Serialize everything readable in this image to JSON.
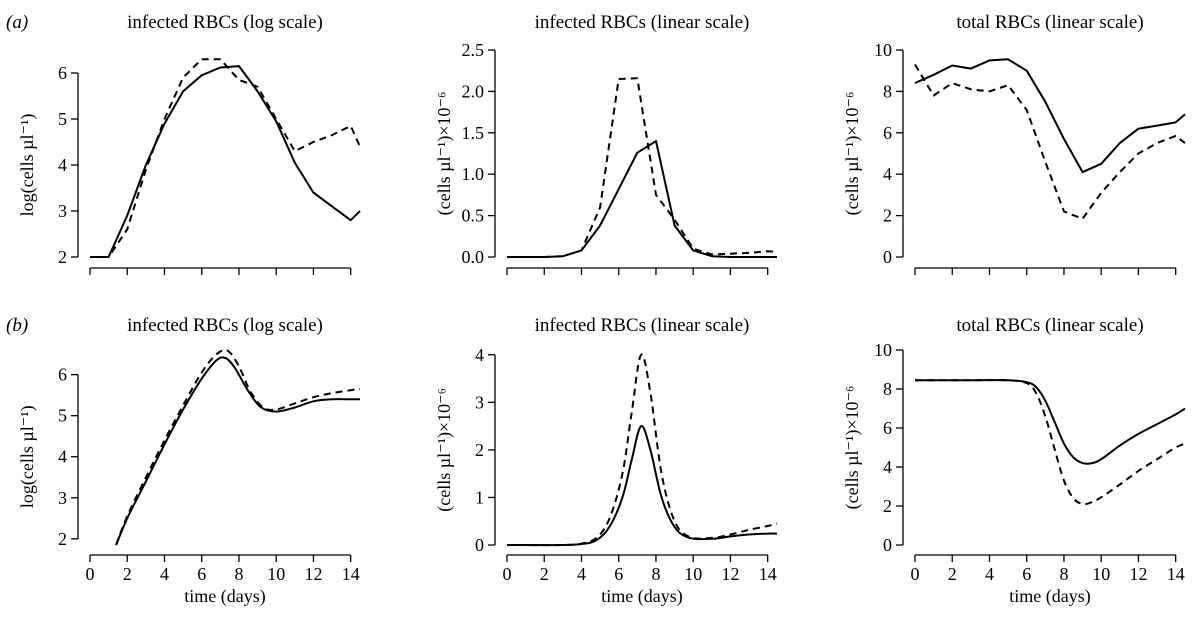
{
  "panel_labels": [
    "(a)",
    "(b)"
  ],
  "chart_data": [
    {
      "type": "line",
      "row": 0,
      "col": 0,
      "title": "infected RBCs (log scale)",
      "xlabel": "",
      "ylabel": "log(cells µl⁻¹)",
      "xlim": [
        0,
        14.5
      ],
      "ylim": [
        2,
        6.5
      ],
      "xticks": [
        0,
        2,
        4,
        6,
        8,
        10,
        12,
        14
      ],
      "show_xtick_labels": false,
      "yticks": [
        2,
        3,
        4,
        5,
        6
      ],
      "series": [
        {
          "style": "solid",
          "x": [
            0,
            1,
            2,
            3,
            4,
            5,
            6,
            7,
            8,
            9,
            10,
            11,
            12,
            13,
            14,
            14.5
          ],
          "y": [
            2.0,
            2.0,
            2.9,
            4.0,
            4.9,
            5.6,
            5.95,
            6.12,
            6.15,
            5.6,
            4.95,
            4.05,
            3.4,
            3.1,
            2.8,
            3.0
          ]
        },
        {
          "style": "dashed",
          "x": [
            0,
            1,
            2,
            3,
            4,
            5,
            6,
            7,
            8,
            9,
            10,
            11,
            12,
            13,
            14,
            14.5
          ],
          "y": [
            2.0,
            2.0,
            2.6,
            3.9,
            5.0,
            5.9,
            6.3,
            6.3,
            5.85,
            5.7,
            5.0,
            4.3,
            4.5,
            4.65,
            4.85,
            4.4
          ]
        }
      ]
    },
    {
      "type": "line",
      "row": 0,
      "col": 1,
      "title": "infected RBCs (linear scale)",
      "xlabel": "",
      "ylabel": "(cells µl⁻¹)×10⁻⁶",
      "xlim": [
        0,
        14.5
      ],
      "ylim": [
        0,
        2.5
      ],
      "xticks": [
        0,
        2,
        4,
        6,
        8,
        10,
        12,
        14
      ],
      "show_xtick_labels": false,
      "yticks": [
        0.0,
        0.5,
        1.0,
        1.5,
        2.0,
        2.5
      ],
      "ytick_labels": [
        "0.0",
        "0.5",
        "1.0",
        "1.5",
        "2.0",
        "2.5"
      ],
      "series": [
        {
          "style": "solid",
          "x": [
            0,
            1,
            2,
            3,
            4,
            5,
            6,
            7,
            8,
            9,
            10,
            11,
            12,
            13,
            14,
            14.5
          ],
          "y": [
            0,
            0,
            0,
            0.01,
            0.08,
            0.38,
            0.82,
            1.26,
            1.4,
            0.38,
            0.08,
            0.01,
            0,
            0,
            0,
            0
          ]
        },
        {
          "style": "dashed",
          "x": [
            0,
            1,
            2,
            3,
            4,
            5,
            6,
            7,
            8,
            9,
            10,
            11,
            12,
            13,
            14,
            14.5
          ],
          "y": [
            0,
            0,
            0,
            0.01,
            0.08,
            0.6,
            2.15,
            2.16,
            0.75,
            0.45,
            0.1,
            0.03,
            0.04,
            0.05,
            0.07,
            0.06
          ]
        }
      ]
    },
    {
      "type": "line",
      "row": 0,
      "col": 2,
      "title": "total RBCs (linear scale)",
      "xlabel": "",
      "ylabel": "(cells µl⁻¹)×10⁻⁶",
      "xlim": [
        0,
        14.5
      ],
      "ylim": [
        0,
        10
      ],
      "xticks": [
        0,
        2,
        4,
        6,
        8,
        10,
        12,
        14
      ],
      "show_xtick_labels": false,
      "yticks": [
        0,
        2,
        4,
        6,
        8,
        10
      ],
      "series": [
        {
          "style": "solid",
          "x": [
            0,
            1,
            2,
            3,
            4,
            5,
            6,
            7,
            8,
            9,
            10,
            11,
            12,
            13,
            14,
            14.5
          ],
          "y": [
            8.4,
            8.8,
            9.25,
            9.1,
            9.5,
            9.55,
            9.0,
            7.5,
            5.7,
            4.1,
            4.5,
            5.5,
            6.2,
            6.35,
            6.5,
            6.9
          ]
        },
        {
          "style": "dashed",
          "x": [
            0,
            1,
            2,
            3,
            4,
            5,
            6,
            7,
            8,
            9,
            10,
            11,
            12,
            13,
            14,
            14.5
          ],
          "y": [
            9.3,
            7.8,
            8.4,
            8.1,
            8.0,
            8.3,
            7.1,
            4.6,
            2.2,
            1.85,
            3.1,
            4.1,
            5.0,
            5.5,
            5.85,
            5.5
          ]
        }
      ]
    },
    {
      "type": "line",
      "row": 1,
      "col": 0,
      "title": "infected RBCs (log scale)",
      "xlabel": "time (days)",
      "ylabel": "log(cells µl⁻¹)",
      "xlim": [
        0,
        14.5
      ],
      "ylim": [
        1.85,
        6.6
      ],
      "xticks": [
        0,
        2,
        4,
        6,
        8,
        10,
        12,
        14
      ],
      "show_xtick_labels": true,
      "yticks": [
        2,
        3,
        4,
        5,
        6
      ],
      "series": [
        {
          "style": "solid",
          "smooth": true,
          "x": [
            1.4,
            2,
            3,
            4,
            5,
            6,
            6.8,
            7.3,
            7.8,
            8.5,
            9.2,
            10,
            11,
            12,
            13,
            14,
            14.5
          ],
          "y": [
            1.85,
            2.5,
            3.4,
            4.3,
            5.15,
            5.9,
            6.35,
            6.4,
            6.15,
            5.6,
            5.2,
            5.1,
            5.2,
            5.35,
            5.4,
            5.4,
            5.4
          ]
        },
        {
          "style": "dashed",
          "smooth": true,
          "x": [
            1.4,
            2,
            3,
            4,
            5,
            6,
            6.8,
            7.4,
            8.0,
            8.6,
            9.3,
            10,
            11,
            12,
            13,
            14,
            14.5
          ],
          "y": [
            1.85,
            2.55,
            3.5,
            4.4,
            5.25,
            6.05,
            6.5,
            6.58,
            6.2,
            5.6,
            5.2,
            5.15,
            5.3,
            5.45,
            5.55,
            5.62,
            5.65
          ]
        }
      ]
    },
    {
      "type": "line",
      "row": 1,
      "col": 1,
      "title": "infected RBCs (linear scale)",
      "xlabel": "time (days)",
      "ylabel": "(cells µl⁻¹)×10⁻⁶",
      "xlim": [
        0,
        14.5
      ],
      "ylim": [
        0,
        4.1
      ],
      "xticks": [
        0,
        2,
        4,
        6,
        8,
        10,
        12,
        14
      ],
      "show_xtick_labels": true,
      "yticks": [
        0,
        1,
        2,
        3,
        4
      ],
      "series": [
        {
          "style": "solid",
          "smooth": true,
          "x": [
            0,
            3,
            4,
            4.8,
            5.5,
            6.2,
            6.7,
            7.2,
            7.7,
            8.3,
            9,
            9.8,
            11,
            12,
            13,
            14,
            14.5
          ],
          "y": [
            0,
            0,
            0.02,
            0.1,
            0.38,
            1.0,
            1.8,
            2.5,
            2.0,
            1.0,
            0.38,
            0.15,
            0.13,
            0.18,
            0.22,
            0.24,
            0.24
          ]
        },
        {
          "style": "dashed",
          "smooth": true,
          "x": [
            0,
            3,
            4,
            4.8,
            5.5,
            6.2,
            6.7,
            7.2,
            7.7,
            8.3,
            9,
            9.8,
            11,
            12,
            13,
            14,
            14.5
          ],
          "y": [
            0,
            0,
            0.03,
            0.15,
            0.55,
            1.5,
            2.8,
            4.0,
            3.2,
            1.5,
            0.5,
            0.17,
            0.15,
            0.22,
            0.32,
            0.4,
            0.45
          ]
        }
      ]
    },
    {
      "type": "line",
      "row": 1,
      "col": 2,
      "title": "total RBCs (linear scale)",
      "xlabel": "time (days)",
      "ylabel": "(cells µl⁻¹)×10⁻⁶",
      "xlim": [
        0,
        14.5
      ],
      "ylim": [
        0,
        10
      ],
      "xticks": [
        0,
        2,
        4,
        6,
        8,
        10,
        12,
        14
      ],
      "show_xtick_labels": true,
      "yticks": [
        0,
        2,
        4,
        6,
        8,
        10
      ],
      "series": [
        {
          "style": "solid",
          "smooth": true,
          "x": [
            0,
            3,
            5,
            6,
            6.5,
            7,
            7.5,
            8,
            8.5,
            9,
            9.5,
            10,
            11,
            12,
            13,
            14,
            14.5
          ],
          "y": [
            8.45,
            8.45,
            8.45,
            8.35,
            8.1,
            7.4,
            6.3,
            5.2,
            4.5,
            4.2,
            4.2,
            4.4,
            5.1,
            5.7,
            6.2,
            6.7,
            7.0
          ]
        },
        {
          "style": "dashed",
          "smooth": true,
          "x": [
            0,
            3,
            5,
            6,
            6.5,
            7,
            7.5,
            8,
            8.5,
            9,
            9.5,
            10,
            11,
            12,
            13,
            14,
            14.5
          ],
          "y": [
            8.45,
            8.45,
            8.45,
            8.3,
            7.8,
            6.6,
            4.9,
            3.3,
            2.4,
            2.1,
            2.2,
            2.45,
            3.1,
            3.8,
            4.4,
            5.0,
            5.2
          ]
        }
      ]
    }
  ]
}
